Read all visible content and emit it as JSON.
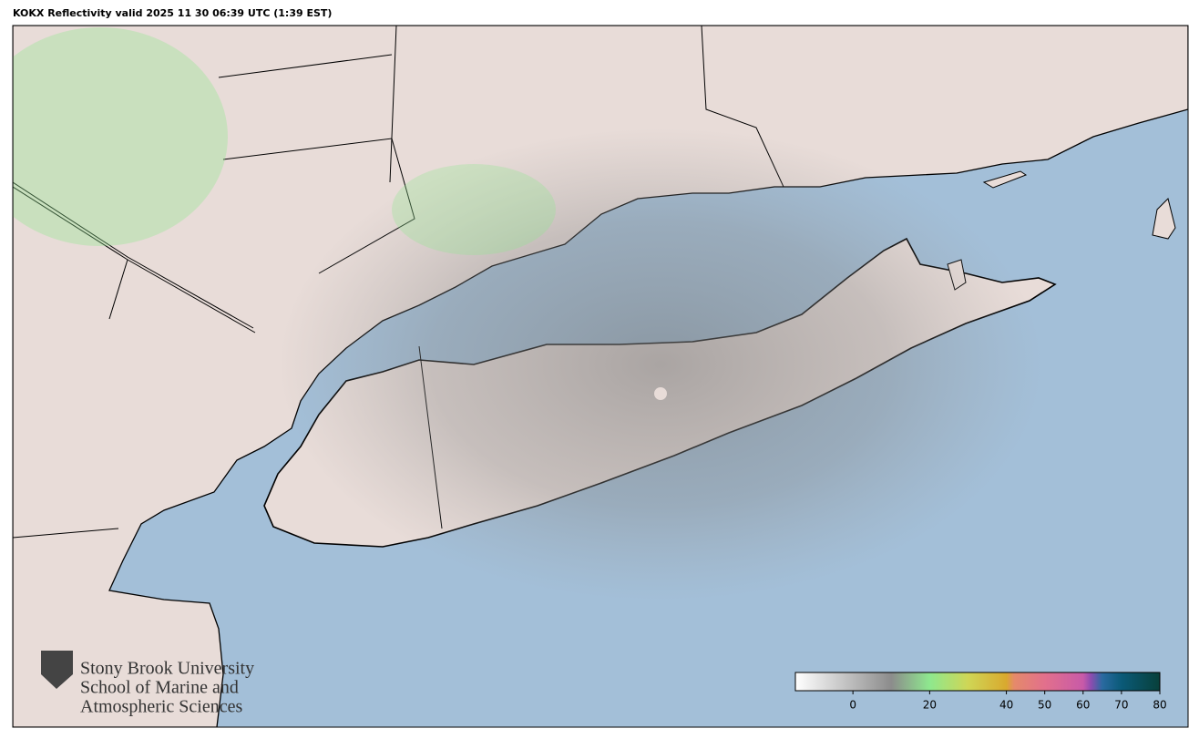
{
  "title": "KOKX Reflectivity valid 2025 11 30 06:39 UTC (1:39 EST)",
  "logo": {
    "lines": [
      "Stony Brook University",
      "School of Marine and",
      "Atmospheric Sciences"
    ]
  },
  "colorbar": {
    "lim": [
      -15,
      80
    ],
    "ticks": [
      0,
      20,
      40,
      50,
      60,
      70,
      80
    ],
    "stops": [
      {
        "value": -15,
        "color": "#ffffff"
      },
      {
        "value": 10,
        "color": "#8c8c8c"
      },
      {
        "value": 20,
        "color": "#8ee88e"
      },
      {
        "value": 30,
        "color": "#cfd656"
      },
      {
        "value": 40,
        "color": "#d9a92e"
      },
      {
        "value": 42,
        "color": "#e58a6a"
      },
      {
        "value": 50,
        "color": "#e2708c"
      },
      {
        "value": 60,
        "color": "#c85aa8"
      },
      {
        "value": 62,
        "color": "#8e4cb0"
      },
      {
        "value": 65,
        "color": "#2a6aa0"
      },
      {
        "value": 70,
        "color": "#0a5a78"
      },
      {
        "value": 80,
        "color": "#08403a"
      }
    ]
  }
}
